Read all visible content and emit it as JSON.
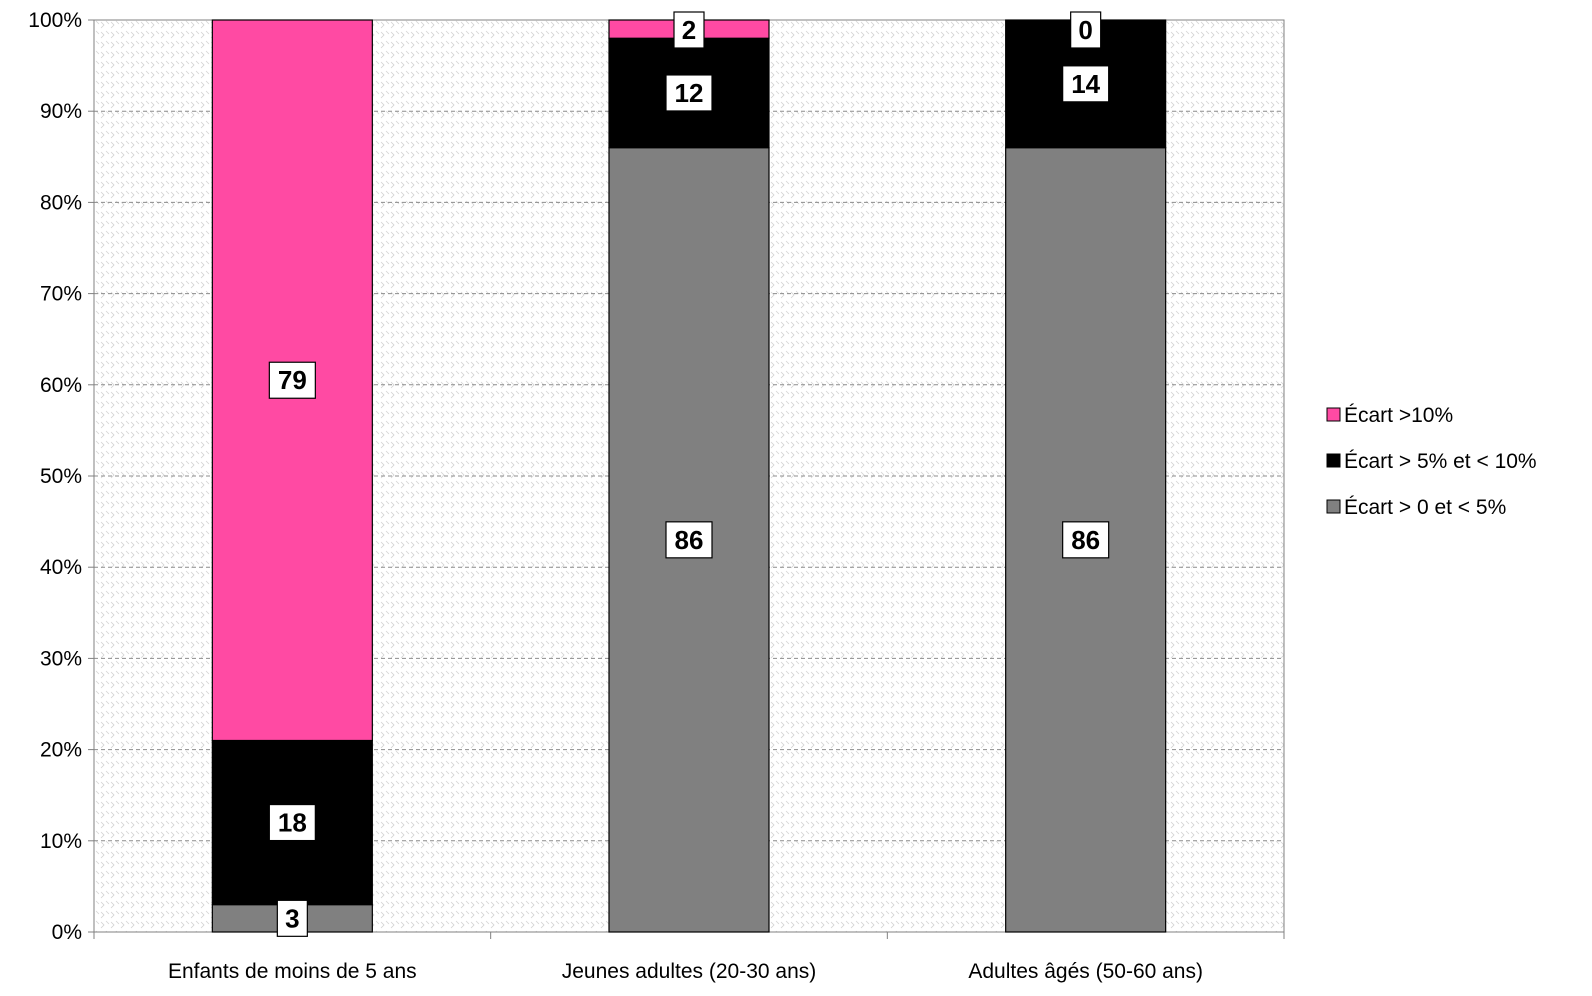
{
  "chart_data": {
    "type": "bar",
    "stacked": true,
    "percent_stacked": true,
    "categories": [
      "Enfants de moins de 5 ans",
      "Jeunes adultes (20-30  ans)",
      "Adultes âgés (50-60  ans)"
    ],
    "series": [
      {
        "name": "Écart > 0 et < 5%",
        "color": "#808080",
        "values": [
          3,
          86,
          86
        ],
        "labels": [
          "3",
          "86",
          "86"
        ]
      },
      {
        "name": "Écart > 5% et < 10%",
        "color": "#000000",
        "values": [
          18,
          12,
          14
        ],
        "labels": [
          "18",
          "12",
          "14"
        ]
      },
      {
        "name": "Écart >10%",
        "color": "#ff4aa3",
        "values": [
          79,
          2,
          0
        ],
        "labels": [
          "79",
          "2",
          "0"
        ]
      }
    ],
    "ylim": [
      0,
      100
    ],
    "y_ticks": [
      "0%",
      "10%",
      "20%",
      "30%",
      "40%",
      "50%",
      "60%",
      "70%",
      "80%",
      "90%",
      "100%"
    ],
    "grid": true,
    "legend_position": "right",
    "legend_order": [
      "Écart >10%",
      "Écart > 5% et < 10%",
      "Écart > 0 et < 5%"
    ],
    "plot_background": "dotted-pattern"
  }
}
